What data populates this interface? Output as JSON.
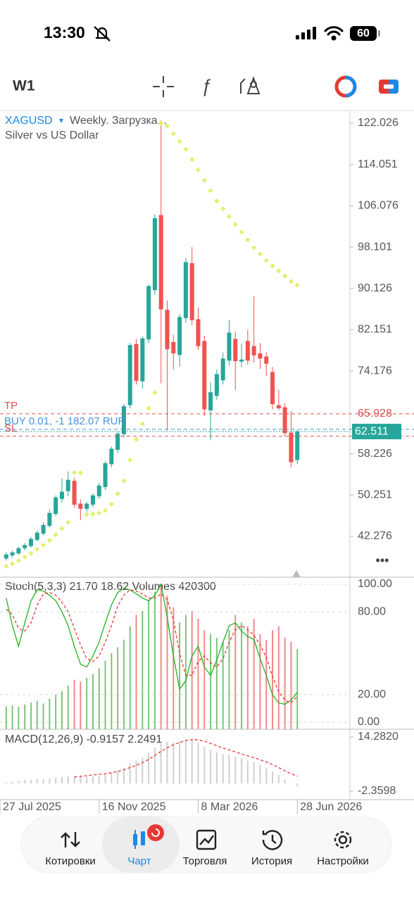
{
  "status_bar": {
    "time": "13:30",
    "battery": "60"
  },
  "toolbar": {
    "period": "W1"
  },
  "chart_data": [
    {
      "type": "candlestick",
      "title": "XAGUSD",
      "title_marker": "▾",
      "subtitle": "Weekly. Загрузка...",
      "description": "Silver vs US Dollar",
      "x": [
        0,
        1,
        2,
        3,
        4,
        5,
        6,
        7,
        8,
        9,
        10,
        11,
        12,
        13,
        14,
        15,
        16,
        17,
        18,
        19,
        20,
        21,
        22,
        23,
        24,
        25,
        26,
        27,
        28,
        29,
        30,
        31,
        32,
        33,
        34,
        35,
        36,
        37,
        38,
        39,
        40,
        41,
        42,
        43,
        44,
        45,
        46,
        47
      ],
      "open": [
        38.0,
        38.6,
        39.0,
        40.0,
        40.4,
        41.6,
        42.8,
        44.3,
        46.6,
        49.5,
        51.0,
        53.0,
        48.6,
        47.6,
        48.4,
        50.0,
        51.8,
        56.2,
        59.0,
        62.0,
        67.6,
        79.4,
        72.2,
        80.3,
        89.8,
        104.3,
        86.0,
        79.8,
        77.3,
        84.4,
        95.0,
        84.2,
        80.0,
        66.6,
        69.4,
        72.4,
        76.2,
        80.4,
        76.0,
        80.0,
        79.0,
        77.6,
        77.0,
        74.0,
        67.6,
        67.2,
        62.3,
        57.0
      ],
      "high": [
        39.2,
        39.5,
        40.3,
        41.0,
        42.2,
        43.4,
        45.0,
        47.5,
        50.2,
        53.5,
        54.8,
        53.6,
        49.4,
        49.0,
        50.6,
        52.6,
        56.8,
        59.6,
        62.5,
        67.8,
        79.6,
        80.4,
        80.9,
        90.9,
        104.4,
        122.6,
        87.8,
        81.2,
        85.2,
        96.0,
        98.1,
        86.5,
        81.0,
        72.0,
        74.5,
        77.8,
        84.0,
        81.8,
        79.5,
        82.2,
        88.6,
        79.6,
        77.8,
        75.0,
        70.6,
        68.0,
        66.5,
        62.9
      ],
      "low": [
        37.6,
        38.2,
        38.7,
        39.6,
        40.1,
        41.3,
        42.5,
        44.0,
        46.2,
        48.8,
        50.0,
        47.8,
        45.4,
        46.8,
        47.9,
        49.5,
        51.2,
        55.6,
        58.4,
        61.4,
        67.0,
        71.6,
        70.8,
        79.6,
        88.9,
        71.8,
        62.7,
        74.5,
        75.0,
        83.5,
        83.0,
        78.2,
        65.5,
        60.8,
        68.6,
        71.6,
        75.2,
        70.5,
        74.9,
        75.4,
        75.8,
        74.6,
        73.2,
        66.8,
        66.6,
        61.6,
        55.6,
        56.2
      ],
      "close": [
        38.8,
        39.2,
        40.0,
        40.6,
        41.8,
        43.0,
        44.5,
        46.8,
        49.8,
        50.9,
        53.2,
        48.4,
        47.6,
        48.6,
        50.2,
        52.1,
        56.4,
        59.2,
        62.1,
        67.4,
        79.2,
        72.3,
        80.5,
        90.6,
        103.7,
        86.1,
        78.4,
        77.6,
        84.6,
        95.2,
        84.0,
        79.0,
        66.8,
        70.1,
        73.6,
        76.6,
        81.6,
        76.1,
        76.4,
        76.2,
        77.2,
        76.6,
        75.6,
        67.8,
        67.0,
        62.2,
        56.6,
        62.511
      ],
      "up_color": "#26a69a",
      "down_color": "#ef5350",
      "sar": {
        "color": "#e3ef6a",
        "values": [
          36.5,
          37.0,
          37.6,
          38.3,
          39.0,
          39.8,
          40.6,
          41.5,
          42.6,
          43.8,
          45.0,
          54.6,
          54.5,
          46.5,
          46.6,
          46.8,
          47.3,
          48.5,
          50.5,
          53.0,
          57.0,
          61.0,
          64.0,
          67.0,
          70.0,
          122.0,
          121.5,
          120.0,
          118.5,
          117.0,
          115.0,
          113.0,
          111.0,
          109.0,
          107.0,
          105.5,
          104.0,
          102.5,
          101.0,
          99.5,
          98.0,
          96.8,
          95.5,
          94.5,
          93.5,
          92.5,
          91.5,
          90.8
        ]
      },
      "levels": [
        {
          "name": "TP",
          "value": 65.928,
          "color": "#d9534f",
          "show_price": true
        },
        {
          "name": "BUY 0.01, -1 182.07 RUR",
          "value": 62.95,
          "color": "#4a90d9",
          "show_price": false
        },
        {
          "name": "SL",
          "value": 61.6,
          "color": "#d9534f",
          "show_price": false
        }
      ],
      "last_price": {
        "value": 62.511,
        "color": "#26a69a"
      },
      "xlim": [
        -1,
        55.5
      ],
      "xticks": [
        {
          "value": -1,
          "label": "27 Jul 2025"
        },
        {
          "value": 15,
          "label": "16 Nov 2025"
        },
        {
          "value": 31,
          "label": "8 Mar 2026"
        },
        {
          "value": 47,
          "label": "28 Jun 2026"
        }
      ],
      "ylim": [
        34.4,
        124.47
      ],
      "yticks": [
        122.026,
        114.051,
        106.076,
        98.101,
        90.126,
        82.151,
        74.176,
        58.226,
        50.251,
        42.276
      ]
    },
    {
      "type": "stochastic",
      "title": "Stoch(5,3,3) 21.70 18.62 Volumes 420300",
      "series": [
        {
          "color": "#22b322",
          "dash": false,
          "values": [
            90,
            70,
            55,
            72,
            88,
            96,
            95,
            92,
            88,
            80,
            70,
            55,
            42,
            40,
            48,
            58,
            72,
            85,
            94,
            97,
            96,
            93,
            90,
            88,
            92,
            100,
            76,
            48,
            24,
            30,
            48,
            55,
            40,
            34,
            45,
            58,
            70,
            72,
            66,
            62,
            60,
            46,
            34,
            20,
            14,
            13,
            16,
            21.7
          ]
        },
        {
          "color": "#e53935",
          "dash": true,
          "values": [
            82,
            78,
            68,
            66,
            72,
            85,
            93,
            94,
            92,
            87,
            80,
            68,
            56,
            46,
            44,
            48,
            58,
            70,
            84,
            92,
            96,
            95,
            93,
            90,
            90,
            93,
            89,
            74,
            50,
            34,
            34,
            44,
            48,
            43,
            40,
            46,
            58,
            67,
            70,
            67,
            63,
            56,
            47,
            33,
            22,
            16,
            14,
            18.62
          ]
        }
      ],
      "volumes": {
        "up_color": "#7cc47c",
        "down_color": "#ef8a8a",
        "values": [
          120000,
          125000,
          118000,
          130000,
          140000,
          150000,
          135000,
          160000,
          180000,
          200000,
          230000,
          260000,
          250000,
          270000,
          290000,
          320000,
          360000,
          400000,
          430000,
          470000,
          540000,
          600000,
          620000,
          680000,
          720000,
          760000,
          700000,
          640000,
          560000,
          600000,
          620000,
          580000,
          520000,
          500000,
          480000,
          460000,
          520000,
          600000,
          560000,
          540000,
          580000,
          500000,
          470000,
          520000,
          540000,
          480000,
          460000,
          420300
        ]
      },
      "ylim": [
        -5.1,
        105.1
      ],
      "yticks": [
        {
          "value": 100,
          "label": "100.00"
        },
        {
          "value": 80,
          "label": "80.00"
        },
        {
          "value": 20,
          "label": "20.00"
        },
        {
          "value": 0,
          "label": "0.00"
        }
      ],
      "grid": true
    },
    {
      "type": "macd",
      "title": "MACD(12,26,9) -0.9157 2.2491",
      "histogram": {
        "color": "#cfcfcf",
        "values": [
          0.4,
          0.6,
          0.8,
          1.0,
          1.1,
          1.3,
          1.4,
          1.6,
          1.8,
          2.0,
          2.2,
          2.2,
          2.1,
          2.1,
          2.2,
          2.4,
          2.8,
          3.3,
          3.9,
          4.8,
          6.2,
          7.0,
          8.0,
          9.4,
          11.0,
          12.4,
          12.8,
          12.6,
          12.9,
          13.6,
          13.4,
          12.6,
          11.2,
          10.3,
          9.6,
          9.0,
          8.8,
          8.2,
          7.6,
          7.0,
          6.6,
          5.8,
          4.8,
          3.6,
          2.6,
          1.2,
          0.1,
          -0.9157
        ]
      },
      "signal": {
        "color": "#e53935",
        "dash": true,
        "values": [
          null,
          null,
          null,
          null,
          null,
          null,
          null,
          null,
          null,
          null,
          null,
          2.0,
          2.2,
          2.4,
          2.6,
          2.8,
          3.0,
          3.3,
          3.7,
          4.2,
          4.9,
          5.6,
          6.4,
          7.4,
          8.6,
          9.9,
          11.0,
          11.9,
          12.6,
          13.2,
          13.5,
          13.4,
          13.0,
          12.3,
          11.6,
          10.9,
          10.3,
          9.7,
          9.1,
          8.5,
          7.9,
          7.3,
          6.6,
          5.8,
          4.9,
          3.9,
          3.0,
          2.2491
        ]
      },
      "ylim": [
        -4.74,
        16.23
      ],
      "yticks": [
        {
          "value": 14.282,
          "label": "14.2820"
        },
        -2.3598
      ]
    }
  ],
  "tab_bar": {
    "tabs": [
      "Котировки",
      "Чарт",
      "Торговля",
      "История",
      "Настройки"
    ]
  }
}
